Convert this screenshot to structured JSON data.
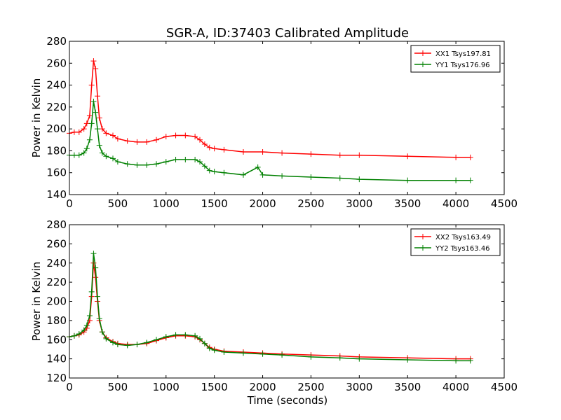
{
  "figure": {
    "title": "SGR-A, ID:37403 Calibrated Amplitude",
    "xlabel": "Time (seconds)"
  },
  "chart_data": [
    {
      "type": "line",
      "ylabel": "Power in Kelvin",
      "xlim": [
        0,
        4500
      ],
      "ylim": [
        140,
        280
      ],
      "xticks": [
        0,
        500,
        1000,
        1500,
        2000,
        2500,
        3000,
        3500,
        4000,
        4500
      ],
      "yticks": [
        140,
        160,
        180,
        200,
        220,
        240,
        260,
        280
      ],
      "legend": "upper right",
      "grid": false,
      "series": [
        {
          "name": "XX1 Tsys197.81",
          "color": "#ff0000",
          "x": [
            0,
            50,
            100,
            150,
            180,
            210,
            230,
            250,
            270,
            290,
            310,
            340,
            380,
            450,
            500,
            600,
            700,
            800,
            900,
            1000,
            1100,
            1200,
            1300,
            1350,
            1400,
            1450,
            1500,
            1600,
            1800,
            2000,
            2200,
            2500,
            2800,
            3000,
            3500,
            4000,
            4150
          ],
          "y": [
            196,
            197,
            197,
            200,
            205,
            212,
            240,
            262,
            255,
            230,
            210,
            200,
            196,
            194,
            191,
            189,
            188,
            188,
            190,
            193,
            194,
            194,
            193,
            190,
            186,
            183,
            182,
            181,
            179,
            179,
            178,
            177,
            176,
            176,
            175,
            174,
            174
          ]
        },
        {
          "name": "YY1 Tsys176.96",
          "color": "#008000",
          "x": [
            0,
            50,
            100,
            150,
            180,
            210,
            230,
            250,
            270,
            290,
            310,
            340,
            380,
            450,
            500,
            600,
            700,
            800,
            900,
            1000,
            1100,
            1200,
            1300,
            1350,
            1400,
            1450,
            1500,
            1600,
            1800,
            1950,
            2000,
            2200,
            2500,
            2800,
            3000,
            3500,
            4000,
            4150
          ],
          "y": [
            176,
            176,
            176,
            178,
            182,
            190,
            205,
            225,
            215,
            200,
            185,
            178,
            175,
            173,
            170,
            168,
            167,
            167,
            168,
            170,
            172,
            172,
            172,
            170,
            166,
            162,
            161,
            160,
            158,
            165,
            158,
            157,
            156,
            155,
            154,
            153,
            153,
            153
          ]
        }
      ]
    },
    {
      "type": "line",
      "ylabel": "Power in Kelvin",
      "xlim": [
        0,
        4500
      ],
      "ylim": [
        120,
        280
      ],
      "xticks": [
        0,
        500,
        1000,
        1500,
        2000,
        2500,
        3000,
        3500,
        4000,
        4500
      ],
      "yticks": [
        120,
        140,
        160,
        180,
        200,
        220,
        240,
        260,
        280
      ],
      "legend": "upper right",
      "grid": false,
      "series": [
        {
          "name": "XX2 Tsys163.49",
          "color": "#ff0000",
          "x": [
            0,
            50,
            100,
            150,
            180,
            210,
            230,
            250,
            270,
            290,
            310,
            340,
            380,
            450,
            500,
            600,
            700,
            800,
            900,
            1000,
            1100,
            1200,
            1300,
            1350,
            1400,
            1450,
            1500,
            1600,
            1800,
            2000,
            2200,
            2500,
            2800,
            3000,
            3500,
            4000,
            4150
          ],
          "y": [
            163,
            164,
            165,
            168,
            172,
            180,
            205,
            240,
            225,
            200,
            180,
            168,
            162,
            158,
            156,
            155,
            155,
            156,
            159,
            162,
            164,
            164,
            163,
            160,
            156,
            152,
            150,
            148,
            147,
            146,
            145,
            144,
            143,
            142,
            141,
            140,
            140
          ]
        },
        {
          "name": "YY2 Tsys163.46",
          "color": "#008000",
          "x": [
            0,
            50,
            100,
            150,
            180,
            210,
            230,
            250,
            270,
            290,
            310,
            340,
            380,
            450,
            500,
            600,
            700,
            800,
            900,
            1000,
            1100,
            1200,
            1300,
            1350,
            1400,
            1450,
            1500,
            1600,
            1800,
            2000,
            2200,
            2500,
            2800,
            3000,
            3500,
            4000,
            4150
          ],
          "y": [
            163,
            164,
            166,
            170,
            175,
            185,
            210,
            250,
            235,
            205,
            182,
            168,
            161,
            157,
            155,
            154,
            155,
            157,
            160,
            163,
            165,
            165,
            164,
            161,
            156,
            151,
            149,
            147,
            146,
            145,
            144,
            142,
            141,
            140,
            139,
            138,
            138
          ]
        }
      ]
    }
  ]
}
